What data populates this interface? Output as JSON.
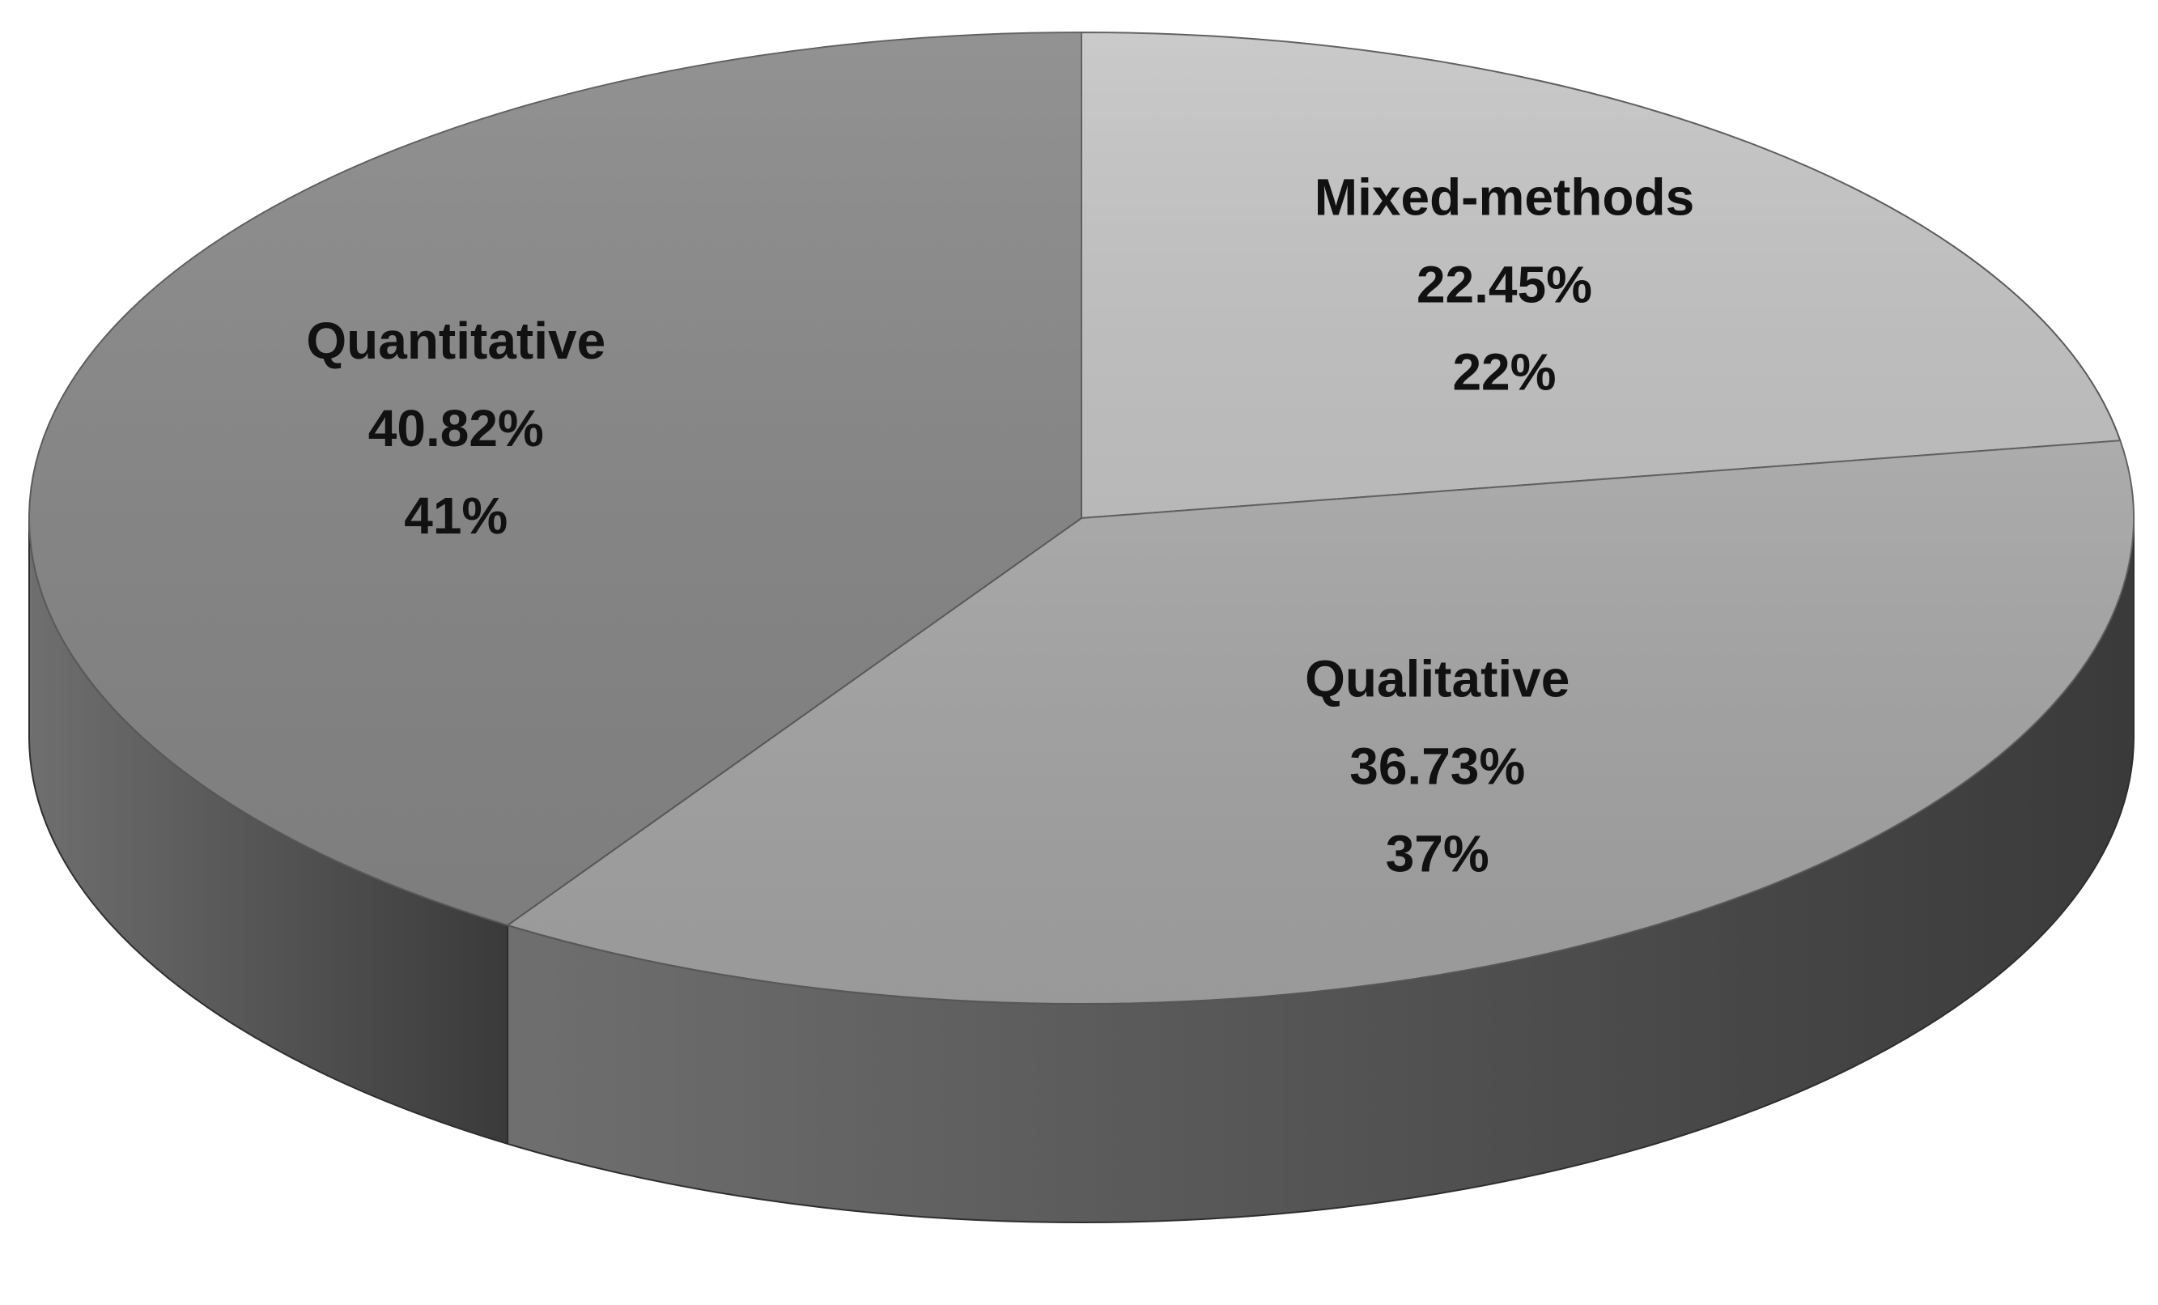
{
  "chart_data": {
    "type": "pie",
    "style": "3d",
    "slices": [
      {
        "name": "Mixed-methods",
        "value": 22.45,
        "percent_label": "22.45%",
        "rounded_label": "22%",
        "color": "#c4c4c4"
      },
      {
        "name": "Qualitative",
        "value": 36.73,
        "percent_label": "36.73%",
        "rounded_label": "37%",
        "color": "#a3a3a3"
      },
      {
        "name": "Quantitative",
        "value": 40.82,
        "percent_label": "40.82%",
        "rounded_label": "41%",
        "color": "#868686"
      }
    ]
  }
}
